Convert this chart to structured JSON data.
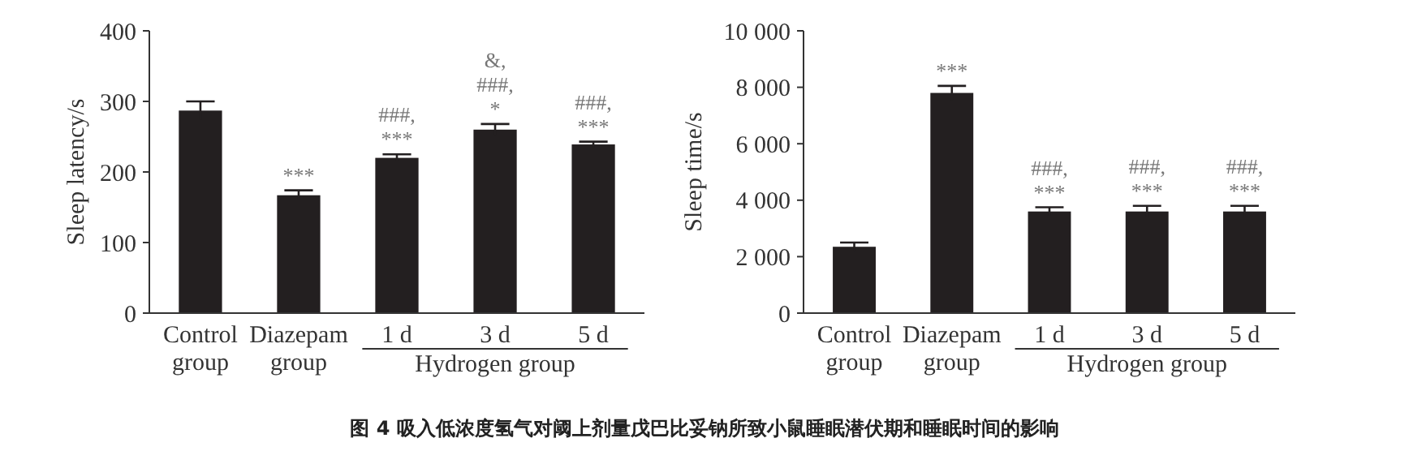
{
  "chart_data": [
    {
      "type": "bar",
      "ylabel": "Sleep latency/s",
      "categories": [
        "Control group",
        "Diazepam group",
        "1 d",
        "3 d",
        "5 d"
      ],
      "values": [
        287,
        167,
        220,
        260,
        239
      ],
      "errors": [
        13,
        7,
        5,
        8,
        4
      ],
      "color": "#231f20",
      "ylim": [
        0,
        400
      ],
      "yticks": [
        0,
        100,
        200,
        300,
        400
      ],
      "grid": false,
      "annotations": [
        "Hydrogen group",
        {
          "text": "***",
          "x": "Diazepam group",
          "y": 174
        },
        {
          "text": "###,\n***",
          "x": "1 d",
          "y": 225
        },
        {
          "text": "&,\n###,\n*",
          "x": "3 d",
          "y": 268
        },
        {
          "text": "###,\n***",
          "x": "5 d",
          "y": 243
        }
      ]
    },
    {
      "type": "bar",
      "ylabel": "Sleep time/s",
      "categories": [
        "Control group",
        "Diazepam group",
        "1 d",
        "3 d",
        "5 d"
      ],
      "values": [
        2350,
        7800,
        3600,
        3600,
        3600
      ],
      "errors": [
        150,
        250,
        150,
        200,
        200
      ],
      "color": "#231f20",
      "ylim": [
        0,
        10000
      ],
      "yticks": [
        {
          "value": 0,
          "label": "0"
        },
        {
          "value": 2000,
          "label": "2 000"
        },
        {
          "value": 4000,
          "label": "4 000"
        },
        {
          "value": 6000,
          "label": "6 000"
        },
        {
          "value": 8000,
          "label": "8 000"
        },
        {
          "value": 10000,
          "label": "10 000"
        }
      ],
      "grid": false,
      "annotations": [
        "Hydrogen group",
        "图 4 吸入低浓度氢气对阈上剂量戊巴比妥钠所致小鼠睡眠潜伏期和睡眠时间的影响",
        {
          "text": "***",
          "x": "Diazepam group",
          "y": 8050
        },
        {
          "text": "###,\n***",
          "x": "1 d",
          "y": 3750
        },
        {
          "text": "###,\n***",
          "x": "3 d",
          "y": 3800
        },
        {
          "text": "###,\n***",
          "x": "5 d",
          "y": 3800
        }
      ]
    }
  ]
}
